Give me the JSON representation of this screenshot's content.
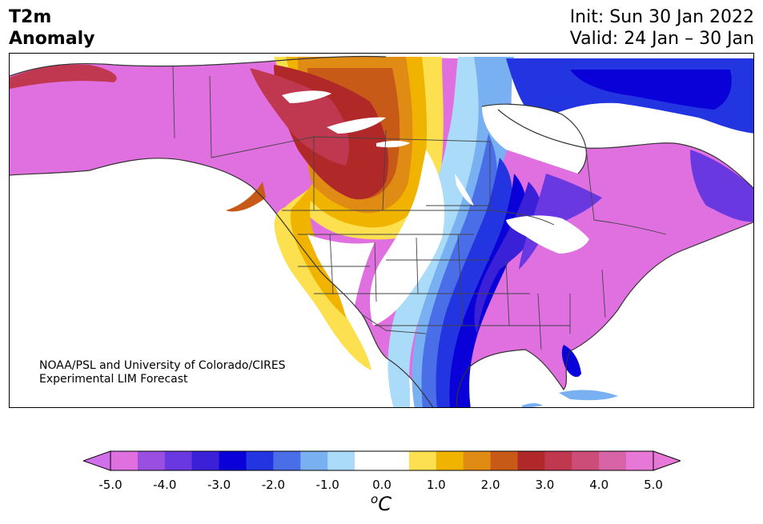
{
  "title": {
    "line1": "T2m",
    "line2": "Anomaly"
  },
  "run": {
    "init": "Init: Sun 30 Jan 2022",
    "valid": "Valid: 24 Jan – 30 Jan"
  },
  "credit": {
    "line1": "NOAA/PSL and University of Colorado/CIRES",
    "line2": "Experimental LIM Forecast"
  },
  "colorbar": {
    "unit_sup": "o",
    "unit_main": "C",
    "ticks": [
      "-5.0",
      "-4.0",
      "-3.0",
      "-2.0",
      "-1.0",
      "0.0",
      "1.0",
      "2.0",
      "3.0",
      "4.0",
      "5.0"
    ],
    "min": -5.0,
    "max": 5.0,
    "colors": [
      "#e070e0",
      "#9b4fe0",
      "#6a38e0",
      "#3a20d6",
      "#0a00d8",
      "#2235e0",
      "#4a6ee8",
      "#78b0f2",
      "#aadcfa",
      "#ffffff",
      "#ffffff",
      "#fce050",
      "#f0b400",
      "#e08c14",
      "#c85a18",
      "#b02828",
      "#c03850",
      "#cc4e78",
      "#d864a8",
      "#e878d8"
    ],
    "extend_low": "#d070ea",
    "extend_high": "#e878d8"
  },
  "map": {
    "region": "North America",
    "warm_anomaly_region": "Alaska and western Canada",
    "cold_anomaly_region": "Central United States",
    "background_anomaly_color": "#e070e0"
  }
}
